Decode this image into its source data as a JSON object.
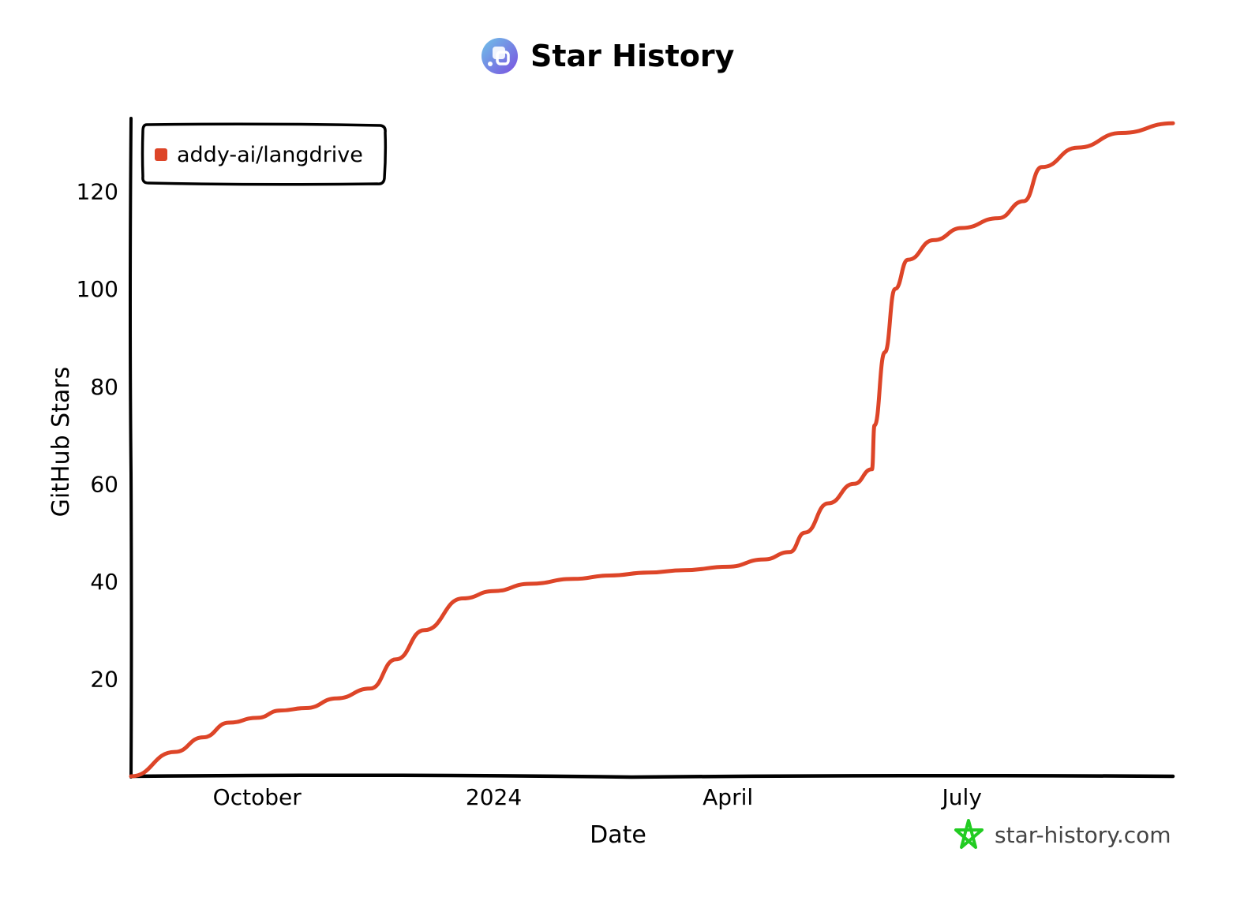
{
  "title": "Star History",
  "logo_icon": "star-history-logo-icon",
  "watermark": {
    "text": "star-history.com",
    "icon": "star-outline-icon",
    "color": "#22cc22"
  },
  "chart_data": {
    "type": "line",
    "title": "Star History",
    "xlabel": "Date",
    "ylabel": "GitHub Stars",
    "x_tick_labels": [
      {
        "label": "October",
        "date": "2023-10-01"
      },
      {
        "label": "2024",
        "date": "2024-01-01"
      },
      {
        "label": "April",
        "date": "2024-04-01"
      },
      {
        "label": "July",
        "date": "2024-07-01"
      }
    ],
    "y_ticks": [
      20,
      40,
      60,
      80,
      100,
      120
    ],
    "xlim": [
      "2023-08-13",
      "2024-09-21"
    ],
    "ylim": [
      0,
      135
    ],
    "grid": false,
    "legend_position": "top-left",
    "series": [
      {
        "name": "addy-ai/langdrive",
        "color": "#dd4528",
        "points": [
          [
            "2023-08-13",
            0
          ],
          [
            "2023-08-30",
            5
          ],
          [
            "2023-09-10",
            8
          ],
          [
            "2023-09-20",
            11
          ],
          [
            "2023-10-01",
            12
          ],
          [
            "2023-10-10",
            13.5
          ],
          [
            "2023-10-20",
            14
          ],
          [
            "2023-11-01",
            16
          ],
          [
            "2023-11-14",
            18
          ],
          [
            "2023-11-24",
            24
          ],
          [
            "2023-12-05",
            30
          ],
          [
            "2023-12-20",
            36.5
          ],
          [
            "2024-01-01",
            38
          ],
          [
            "2024-01-15",
            39.5
          ],
          [
            "2024-02-01",
            40.5
          ],
          [
            "2024-02-15",
            41.2
          ],
          [
            "2024-03-01",
            41.8
          ],
          [
            "2024-03-15",
            42.3
          ],
          [
            "2024-04-01",
            43
          ],
          [
            "2024-04-15",
            44.5
          ],
          [
            "2024-04-25",
            46
          ],
          [
            "2024-05-01",
            50
          ],
          [
            "2024-05-10",
            56
          ],
          [
            "2024-05-20",
            60
          ],
          [
            "2024-05-27",
            63
          ],
          [
            "2024-05-28",
            72
          ],
          [
            "2024-06-01",
            87
          ],
          [
            "2024-06-05",
            100
          ],
          [
            "2024-06-10",
            106
          ],
          [
            "2024-06-20",
            110
          ],
          [
            "2024-07-01",
            112.5
          ],
          [
            "2024-07-15",
            114.5
          ],
          [
            "2024-07-25",
            118
          ],
          [
            "2024-08-01",
            125
          ],
          [
            "2024-08-15",
            129
          ],
          [
            "2024-09-01",
            132
          ],
          [
            "2024-09-21",
            134
          ]
        ]
      }
    ]
  }
}
